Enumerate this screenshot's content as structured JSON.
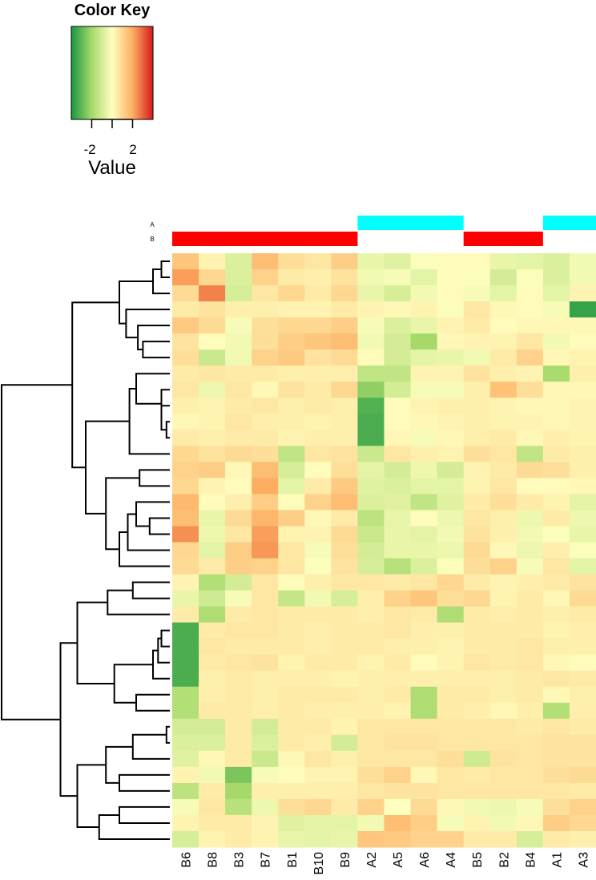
{
  "color_key": {
    "title": "Color Key",
    "axis_label": "Value",
    "ticks": [
      -2,
      0,
      2
    ],
    "tick_labels": [
      "-2",
      "2"
    ],
    "range": [
      -4,
      4
    ],
    "colors": [
      "#1a9641",
      "#a6d96a",
      "#ffffbf",
      "#fdae61",
      "#d7191c"
    ]
  },
  "chart_data": {
    "type": "heatmap",
    "columns": [
      "B6",
      "B8",
      "B3",
      "B7",
      "B1",
      "B10",
      "B9",
      "A2",
      "A5",
      "A6",
      "A4",
      "B5",
      "B2",
      "B4",
      "A1",
      "A3"
    ],
    "annotation_tracks": [
      {
        "name": "A",
        "color": "#00ffff",
        "flags": [
          0,
          0,
          0,
          0,
          0,
          0,
          0,
          1,
          1,
          1,
          1,
          0,
          0,
          0,
          1,
          1
        ]
      },
      {
        "name": "B",
        "color": "#ff0000",
        "flags": [
          1,
          1,
          1,
          1,
          1,
          1,
          1,
          0,
          0,
          0,
          0,
          1,
          1,
          1,
          0,
          0
        ]
      }
    ],
    "values": [
      [
        1.4,
        0.3,
        -0.8,
        1.6,
        0.8,
        0.6,
        1.2,
        -0.5,
        -0.7,
        -0.1,
        0.1,
        0.1,
        -0.5,
        -0.6,
        -0.8,
        -0.3
      ],
      [
        2.2,
        1.0,
        -0.8,
        1.1,
        0.5,
        0.4,
        0.7,
        -0.3,
        -0.2,
        -0.6,
        0.1,
        -0.1,
        -1.0,
        -0.1,
        -0.8,
        -0.3
      ],
      [
        0.9,
        2.6,
        -0.9,
        0.6,
        1.0,
        0.5,
        1.0,
        -0.5,
        -0.9,
        -0.3,
        0.1,
        -0.2,
        -0.6,
        0.1,
        -0.6,
        0.3
      ],
      [
        0.5,
        0.7,
        0.4,
        0.4,
        0.3,
        0.3,
        0.5,
        0.3,
        0.2,
        0.3,
        -0.1,
        0.6,
        0.2,
        0.1,
        -0.2,
        -3.6
      ],
      [
        1.3,
        0.9,
        -0.2,
        0.8,
        1.0,
        1.0,
        1.2,
        -0.2,
        -0.8,
        -0.5,
        0.3,
        0.5,
        0.1,
        0.2,
        0.2,
        0.2
      ],
      [
        0.7,
        0.1,
        -0.3,
        0.8,
        1.2,
        1.4,
        1.6,
        -0.3,
        -1.0,
        -2.0,
        0.2,
        0.3,
        0.3,
        0.6,
        -0.3,
        0.1
      ],
      [
        0.8,
        -1.2,
        -0.3,
        1.1,
        1.3,
        0.7,
        0.9,
        0.1,
        -1.0,
        -0.6,
        -0.5,
        -0.3,
        0.5,
        1.1,
        0.2,
        0.3
      ],
      [
        0.5,
        0.6,
        0.5,
        0.5,
        0.4,
        0.4,
        0.4,
        -1.4,
        -1.4,
        0.3,
        0.3,
        0.7,
        0.4,
        0.3,
        -1.9,
        0.4
      ],
      [
        0.6,
        -0.4,
        0.6,
        0.2,
        0.7,
        0.5,
        1.0,
        -2.3,
        -1.0,
        -0.2,
        -0.2,
        0.4,
        1.5,
        0.8,
        0.2,
        0.2
      ],
      [
        0.4,
        0.3,
        0.5,
        0.6,
        0.4,
        0.5,
        0.4,
        -3.2,
        0.1,
        0.3,
        0.4,
        0.4,
        0.3,
        0.2,
        0.2,
        0.3
      ],
      [
        0.2,
        0.3,
        0.6,
        0.4,
        0.4,
        0.3,
        0.4,
        -3.3,
        0.1,
        0.2,
        0.3,
        0.4,
        0.3,
        0.3,
        0.2,
        0.3
      ],
      [
        0.5,
        0.4,
        0.5,
        0.5,
        0.3,
        0.4,
        0.4,
        -3.3,
        0.2,
        -0.2,
        0.2,
        0.4,
        0.5,
        0.2,
        0.4,
        0.3
      ],
      [
        1.0,
        0.7,
        0.9,
        0.8,
        -1.4,
        0.6,
        0.7,
        -1.2,
        0.6,
        0.4,
        0.3,
        0.8,
        0.6,
        -1.4,
        0.5,
        0.4
      ],
      [
        1.1,
        1.2,
        0.2,
        1.6,
        -0.9,
        0.1,
        0.8,
        -0.6,
        -1.0,
        -0.4,
        -1.0,
        0.3,
        0.5,
        0.9,
        0.8,
        0.4
      ],
      [
        1.0,
        0.3,
        0.1,
        2.0,
        -0.6,
        0.5,
        1.3,
        -0.7,
        -0.8,
        -0.6,
        -0.6,
        0.3,
        0.6,
        0.1,
        0.1,
        0.2
      ],
      [
        1.7,
        0.1,
        0.4,
        1.2,
        0.1,
        1.1,
        1.6,
        -0.8,
        -0.7,
        -1.4,
        -0.7,
        0.5,
        0.8,
        0.5,
        0.3,
        -0.6
      ],
      [
        1.6,
        -0.5,
        0.9,
        1.8,
        1.2,
        0.2,
        0.5,
        -1.5,
        -0.5,
        0.1,
        -0.4,
        0.6,
        0.4,
        -0.4,
        0.5,
        -0.4
      ],
      [
        2.4,
        -0.4,
        0.6,
        2.2,
        0.3,
        0.3,
        0.9,
        -1.2,
        -0.5,
        -0.6,
        -0.3,
        0.7,
        0.4,
        -0.3,
        -0.1,
        -0.5
      ],
      [
        1.0,
        -0.6,
        1.2,
        2.3,
        0.6,
        -0.2,
        0.8,
        -1.0,
        -0.5,
        -0.5,
        -0.4,
        0.9,
        0.2,
        -0.4,
        0.4,
        -0.1
      ],
      [
        0.9,
        0.5,
        1.2,
        1.1,
        0.6,
        -0.1,
        0.7,
        -0.9,
        -1.6,
        -0.8,
        -0.1,
        0.8,
        1.1,
        -0.2,
        0.6,
        -0.6
      ],
      [
        0.3,
        -1.7,
        -1.0,
        0.6,
        0.1,
        0.4,
        0.6,
        0.6,
        0.5,
        0.6,
        1.0,
        0.5,
        0.3,
        0.4,
        0.5,
        0.7
      ],
      [
        -0.5,
        -1.1,
        -0.2,
        0.6,
        -1.3,
        -0.3,
        -0.9,
        0.4,
        1.1,
        1.4,
        0.8,
        1.0,
        0.3,
        0.5,
        0.2,
        0.9
      ],
      [
        0.5,
        -1.8,
        0.5,
        0.6,
        0.5,
        0.5,
        0.5,
        0.4,
        0.6,
        0.5,
        -1.8,
        0.5,
        0.4,
        0.5,
        0.4,
        0.5
      ],
      [
        -3.3,
        0.5,
        0.6,
        0.6,
        0.5,
        0.4,
        0.5,
        0.5,
        0.6,
        0.4,
        0.4,
        0.5,
        0.5,
        0.5,
        0.3,
        0.4
      ],
      [
        -3.3,
        0.6,
        0.5,
        0.5,
        0.5,
        0.4,
        0.5,
        0.5,
        0.4,
        0.4,
        0.3,
        0.5,
        0.5,
        0.6,
        0.4,
        0.4
      ],
      [
        -3.3,
        0.5,
        0.6,
        0.7,
        0.3,
        0.5,
        0.5,
        0.3,
        0.5,
        0.1,
        0.3,
        0.6,
        0.5,
        0.6,
        0.2,
        0.1
      ],
      [
        -3.3,
        0.4,
        0.5,
        0.4,
        0.4,
        0.4,
        0.3,
        0.4,
        0.4,
        0.4,
        0.4,
        0.4,
        0.4,
        0.5,
        0.6,
        0.5
      ],
      [
        -1.7,
        0.4,
        0.5,
        0.4,
        0.5,
        0.5,
        0.5,
        0.4,
        0.5,
        -1.8,
        0.5,
        0.5,
        0.4,
        0.5,
        0.2,
        0.4
      ],
      [
        -1.7,
        0.5,
        0.5,
        0.4,
        0.5,
        0.4,
        0.4,
        0.4,
        0.3,
        -1.8,
        0.5,
        0.4,
        0.2,
        0.4,
        -1.7,
        0.4
      ],
      [
        -1.0,
        -1.0,
        0.5,
        -1.0,
        0.5,
        0.5,
        0.3,
        0.6,
        0.6,
        0.6,
        0.6,
        0.6,
        0.6,
        0.5,
        0.6,
        0.5
      ],
      [
        -0.8,
        -0.8,
        0.5,
        -0.8,
        0.5,
        0.4,
        -1.0,
        0.6,
        0.7,
        0.7,
        0.6,
        0.6,
        0.6,
        0.6,
        0.7,
        0.7
      ],
      [
        -0.7,
        0.2,
        0.5,
        -1.2,
        0.2,
        0.6,
        0.4,
        0.6,
        0.6,
        0.6,
        0.8,
        -1.1,
        0.7,
        0.6,
        0.7,
        0.7
      ],
      [
        0.3,
        -0.3,
        -2.6,
        -0.2,
        0.1,
        0.3,
        0.3,
        0.8,
        1.1,
        0.2,
        0.6,
        0.5,
        0.6,
        0.6,
        0.8,
        0.9
      ],
      [
        -1.5,
        0.5,
        -2.0,
        0.4,
        0.4,
        0.4,
        0.4,
        0.6,
        0.7,
        0.7,
        0.6,
        0.6,
        0.6,
        0.6,
        0.6,
        0.5
      ],
      [
        -0.2,
        0.6,
        -1.6,
        -0.4,
        0.8,
        1.0,
        0.5,
        1.1,
        0.0,
        0.9,
        0.2,
        -0.3,
        -0.4,
        -0.2,
        0.8,
        1.1
      ],
      [
        0.3,
        0.5,
        0.5,
        0.3,
        -0.7,
        -0.6,
        -0.6,
        -0.3,
        1.6,
        1.2,
        -0.2,
        0.3,
        -0.3,
        0.2,
        1.2,
        1.0
      ],
      [
        -0.9,
        0.3,
        0.5,
        0.3,
        -0.5,
        -0.6,
        -0.5,
        1.4,
        1.3,
        1.1,
        1.1,
        0.5,
        0.5,
        -0.9,
        0.5,
        0.4
      ]
    ],
    "row_dendrogram": [
      [
        0,
        1,
        0.05
      ],
      [
        37,
        2,
        0.1
      ],
      [
        5,
        6,
        0.16
      ],
      [
        4,
        39,
        0.19
      ],
      [
        3,
        40,
        0.26
      ],
      [
        38,
        41,
        0.3
      ],
      [
        10,
        11,
        0.02
      ],
      [
        9,
        43,
        0.05
      ],
      [
        8,
        44,
        0.05
      ],
      [
        7,
        45,
        0.2
      ],
      [
        46,
        12,
        0.24
      ],
      [
        13,
        14,
        0.18
      ],
      [
        16,
        17,
        0.12
      ],
      [
        15,
        49,
        0.2
      ],
      [
        50,
        18,
        0.25
      ],
      [
        51,
        19,
        0.3
      ],
      [
        48,
        52,
        0.38
      ],
      [
        47,
        53,
        0.5
      ],
      [
        42,
        54,
        0.58
      ],
      [
        20,
        21,
        0.22
      ],
      [
        56,
        22,
        0.37
      ],
      [
        23,
        24,
        0.05
      ],
      [
        58,
        25,
        0.07
      ],
      [
        59,
        26,
        0.1
      ],
      [
        27,
        28,
        0.2
      ],
      [
        60,
        61,
        0.33
      ],
      [
        57,
        62,
        0.55
      ],
      [
        29,
        30,
        0.02
      ],
      [
        64,
        31,
        0.22
      ],
      [
        32,
        33,
        0.3
      ],
      [
        65,
        66,
        0.38
      ],
      [
        34,
        35,
        0.3
      ],
      [
        36,
        68,
        0.42
      ],
      [
        67,
        69,
        0.55
      ],
      [
        63,
        70,
        0.65
      ],
      [
        55,
        71,
        1.0
      ]
    ]
  }
}
